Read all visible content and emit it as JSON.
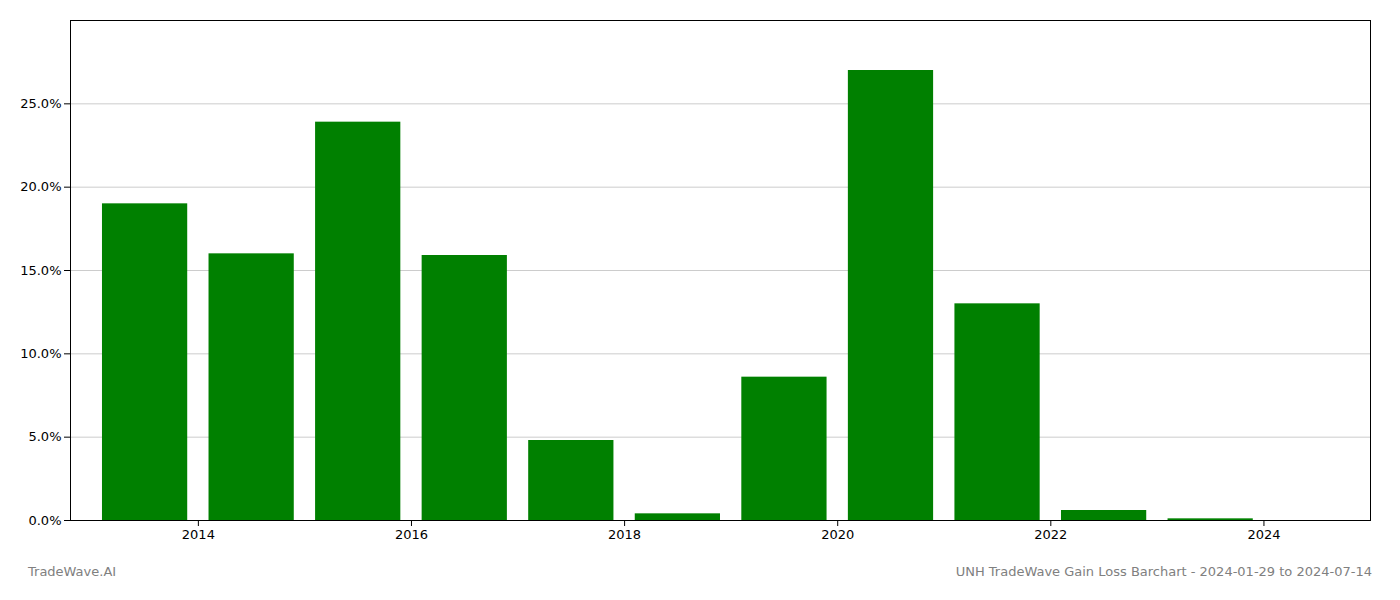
{
  "chart_data": {
    "type": "bar",
    "x": [
      2013.5,
      2014.5,
      2015.5,
      2016.5,
      2017.5,
      2018.5,
      2019.5,
      2020.5,
      2021.5,
      2022.5,
      2023.5
    ],
    "values": [
      0.19,
      0.16,
      0.239,
      0.159,
      0.048,
      0.004,
      0.086,
      0.27,
      0.13,
      0.006,
      0.001
    ],
    "color": "#008000",
    "xlim": [
      2012.8,
      2025.0
    ],
    "xticks": [
      2014,
      2016,
      2018,
      2020,
      2022,
      2024
    ],
    "ylim": [
      0,
      0.3
    ],
    "yticks": [
      {
        "value": 0.0,
        "label": "0.0%"
      },
      {
        "value": 0.05,
        "label": "5.0%"
      },
      {
        "value": 0.1,
        "label": "10.0%"
      },
      {
        "value": 0.15,
        "label": "15.0%"
      },
      {
        "value": 0.2,
        "label": "20.0%"
      },
      {
        "value": 0.25,
        "label": "25.0%"
      }
    ],
    "grid": true,
    "annotations": [
      "TradeWave.AI",
      "UNH TradeWave Gain Loss Barchart - 2024-01-29 to 2024-07-14"
    ]
  }
}
